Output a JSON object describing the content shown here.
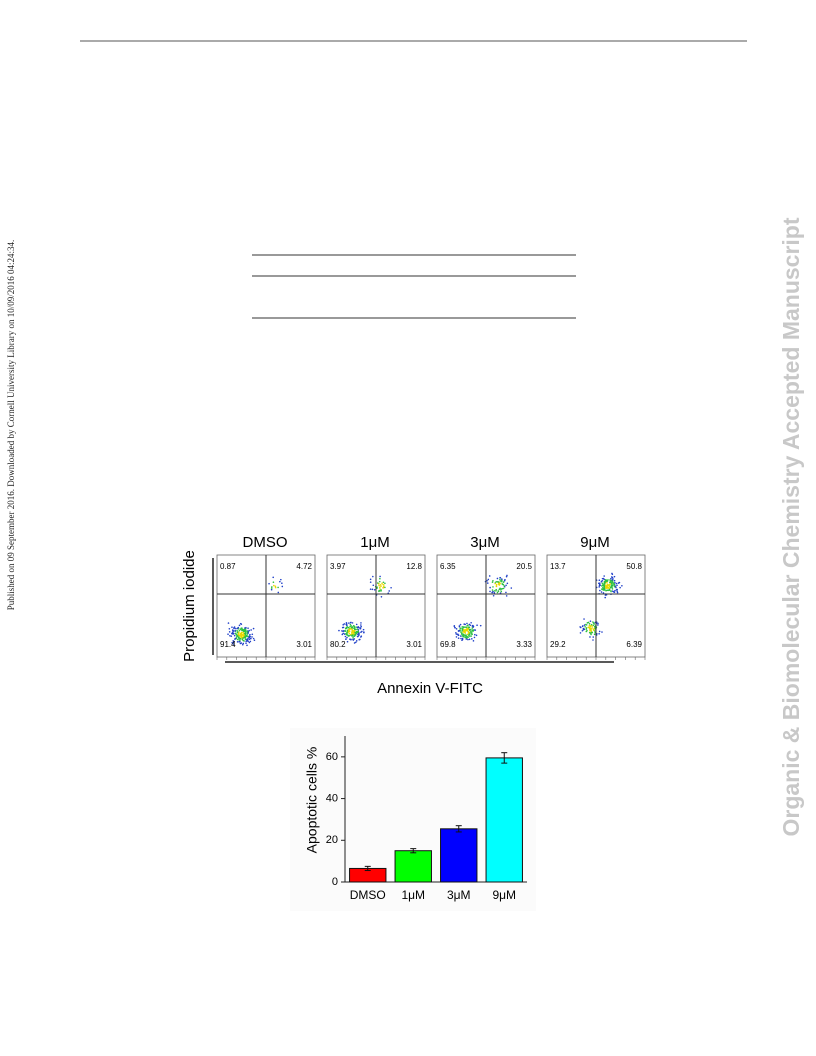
{
  "sidebar": "Published on 09 September 2016. Downloaded by Cornell University Library on 10/09/2016 04:24:34.",
  "watermark": "Organic & Biomolecular Chemistry Accepted Manuscript",
  "flow": {
    "y_label": "Propidium iodide",
    "x_label": "Annexin V-FITC",
    "panels": [
      {
        "label": "DMSO",
        "upper_left": 0.87,
        "upper_right": 4.72,
        "lower_left": 91.4,
        "lower_right": 3.01
      },
      {
        "label": "1μM",
        "upper_left": 3.97,
        "upper_right": 12.8,
        "lower_left": 80.2,
        "lower_right": 3.01
      },
      {
        "label": "3μM",
        "upper_left": 6.35,
        "upper_right": 20.5,
        "lower_left": 69.8,
        "lower_right": 3.33
      },
      {
        "label": "9μM",
        "upper_left": 13.7,
        "upper_right": 50.8,
        "lower_left": 29.2,
        "lower_right": 6.39
      }
    ]
  },
  "chart_data": {
    "type": "bar",
    "y_label": "Apoptotic cells %",
    "categories": [
      "DMSO",
      "1μM",
      "3μM",
      "9μM"
    ],
    "values": [
      6.5,
      15,
      25.5,
      59.5
    ],
    "errors": [
      1,
      1,
      1.5,
      2.5
    ],
    "colors": [
      "#ff0000",
      "#00ff00",
      "#0000ff",
      "#00ffff"
    ],
    "ylim": [
      0,
      70
    ],
    "yticks": [
      0,
      20,
      40,
      60
    ]
  }
}
